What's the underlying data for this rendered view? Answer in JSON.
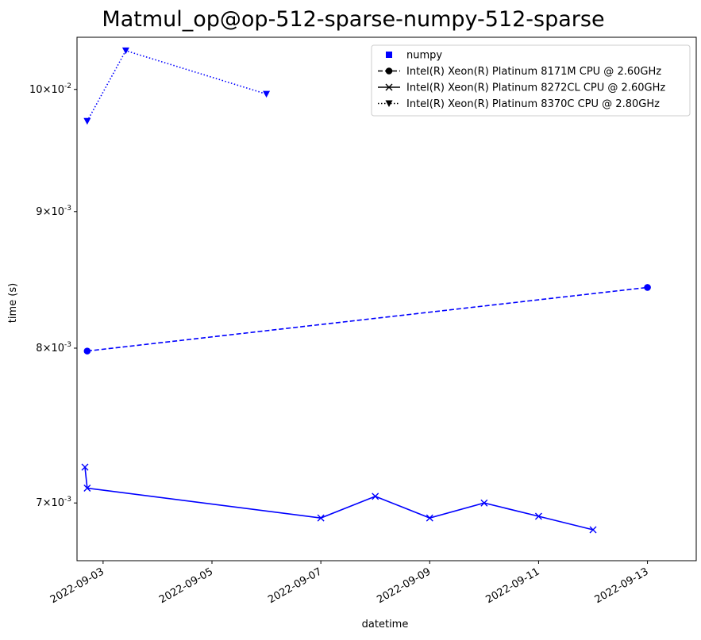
{
  "chart_data": {
    "type": "line",
    "title": "Matmul_op@op-512-sparse-numpy-512-sparse",
    "xlabel": "datetime",
    "ylabel": "time (s)",
    "yscale": "log",
    "grid": false,
    "legend_position": "top-right",
    "color": "#0000ff",
    "xlim": [
      "2022-09-02 12:30",
      "2022-09-13 21:30"
    ],
    "ylim": [
      0.00666,
      0.01046
    ],
    "x_ticks": [
      "2022-09-03",
      "2022-09-05",
      "2022-09-07",
      "2022-09-09",
      "2022-09-11",
      "2022-09-13"
    ],
    "y_ticks": [
      {
        "value": 0.007,
        "base": "7",
        "exp": "-3"
      },
      {
        "value": 0.008,
        "base": "8",
        "exp": "-3"
      },
      {
        "value": 0.009,
        "base": "9",
        "exp": "-3"
      },
      {
        "value": 0.01,
        "base": "10",
        "exp": "-2"
      }
    ],
    "legend": [
      {
        "label": "numpy",
        "marker": "square",
        "linestyle": "none"
      },
      {
        "label": "Intel(R) Xeon(R) Platinum 8171M CPU @ 2.60GHz",
        "marker": "circle",
        "linestyle": "dashed"
      },
      {
        "label": "Intel(R) Xeon(R) Platinum 8272CL CPU @ 2.60GHz",
        "marker": "x",
        "linestyle": "solid"
      },
      {
        "label": "Intel(R) Xeon(R) Platinum 8370C CPU @ 2.80GHz",
        "marker": "triangle-down",
        "linestyle": "dotted"
      }
    ],
    "series": [
      {
        "name": "Intel(R) Xeon(R) Platinum 8171M CPU @ 2.60GHz",
        "marker": "circle",
        "linestyle": "dashed",
        "points": [
          {
            "x": "2022-09-02 17:00",
            "y": 0.00798
          },
          {
            "x": "2022-09-13 00:00",
            "y": 0.00843
          }
        ]
      },
      {
        "name": "Intel(R) Xeon(R) Platinum 8272CL CPU @ 2.60GHz",
        "marker": "x",
        "linestyle": "solid",
        "points": [
          {
            "x": "2022-09-02 16:00",
            "y": 0.00722
          },
          {
            "x": "2022-09-02 17:00",
            "y": 0.00709
          },
          {
            "x": "2022-09-07 00:00",
            "y": 0.00691
          },
          {
            "x": "2022-09-08 00:00",
            "y": 0.00704
          },
          {
            "x": "2022-09-09 00:00",
            "y": 0.00691
          },
          {
            "x": "2022-09-10 00:00",
            "y": 0.007
          },
          {
            "x": "2022-09-11 00:00",
            "y": 0.00692
          },
          {
            "x": "2022-09-12 00:00",
            "y": 0.00684
          }
        ]
      },
      {
        "name": "Intel(R) Xeon(R) Platinum 8370C CPU @ 2.80GHz",
        "marker": "triangle-down",
        "linestyle": "dotted",
        "points": [
          {
            "x": "2022-09-02 17:00",
            "y": 0.00973
          },
          {
            "x": "2022-09-03 10:00",
            "y": 0.01034
          },
          {
            "x": "2022-09-06 00:00",
            "y": 0.00996
          }
        ]
      }
    ]
  }
}
